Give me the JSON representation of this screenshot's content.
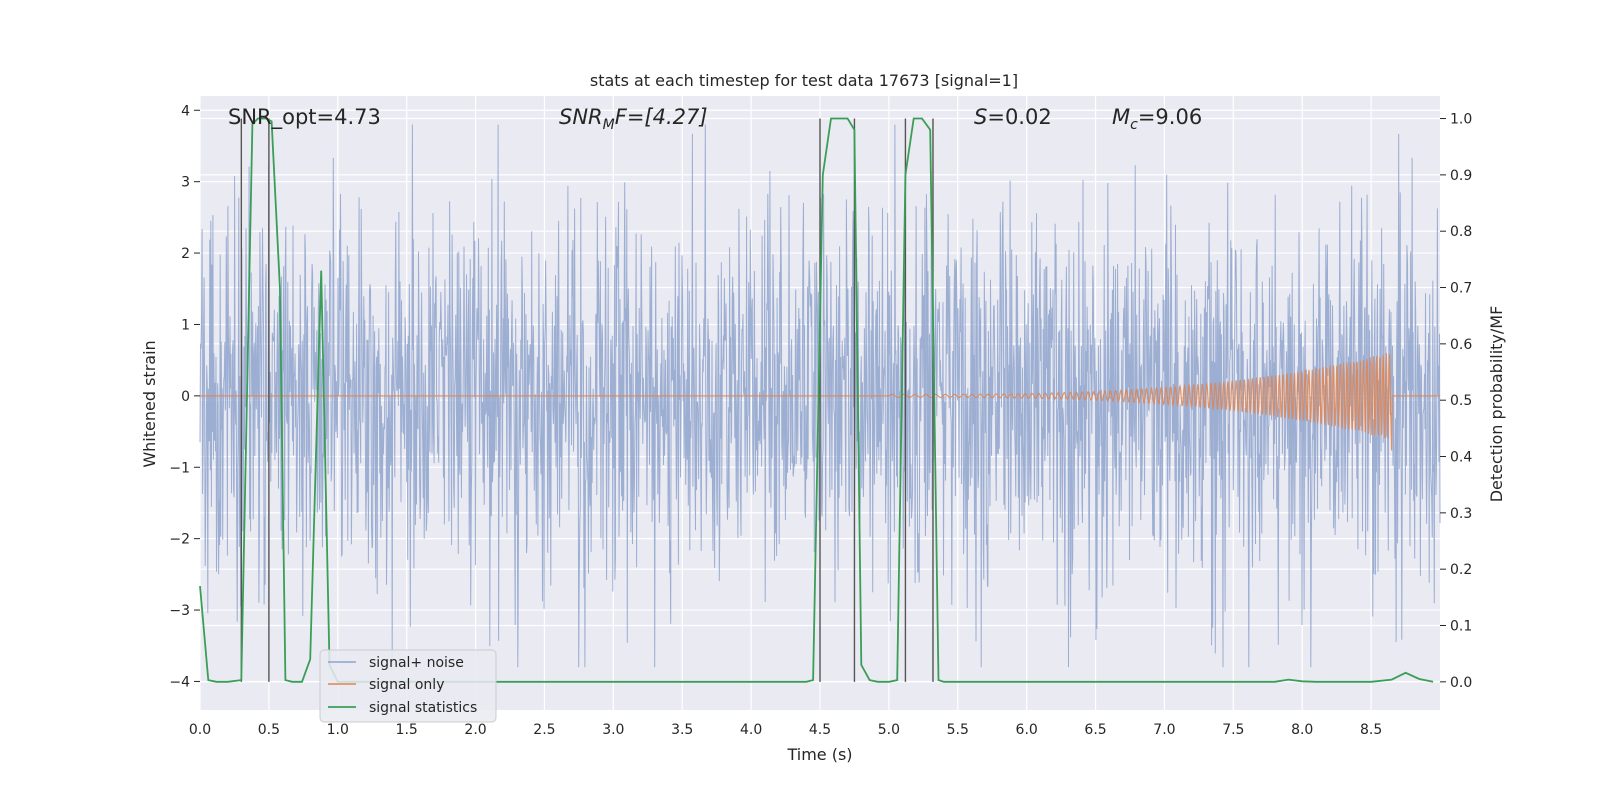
{
  "chart_data": {
    "type": "line",
    "title": "stats at each timestep for test data 17673 [signal=1]",
    "xlabel": "Time (s)",
    "ylabel": "Whitened strain",
    "y2label": "Detection probability/MF",
    "xlim": [
      0.0,
      9.0
    ],
    "ylim": [
      -4.4,
      4.2
    ],
    "y2lim": [
      -0.05,
      1.04
    ],
    "xticks": [
      0.0,
      0.5,
      1.0,
      1.5,
      2.0,
      2.5,
      3.0,
      3.5,
      4.0,
      4.5,
      5.0,
      5.5,
      6.0,
      6.5,
      7.0,
      7.5,
      8.0,
      8.5
    ],
    "xtick_labels": [
      "0.0",
      "0.5",
      "1.0",
      "1.5",
      "2.0",
      "2.5",
      "3.0",
      "3.5",
      "4.0",
      "4.5",
      "5.0",
      "5.5",
      "6.0",
      "6.5",
      "7.0",
      "7.5",
      "8.0",
      "8.5"
    ],
    "yticks": [
      4,
      3,
      2,
      1,
      0,
      -1,
      -2,
      -3,
      -4
    ],
    "ytick_labels": [
      "4",
      "3",
      "2",
      "1",
      "0",
      "−1",
      "−2",
      "−3",
      "−4"
    ],
    "y2ticks": [
      1.0,
      0.9,
      0.8,
      0.7,
      0.6,
      0.5,
      0.4,
      0.3,
      0.2,
      0.1,
      0.0
    ],
    "y2tick_labels": [
      "1.0",
      "0.9",
      "0.8",
      "0.7",
      "0.6",
      "0.5",
      "0.4",
      "0.3",
      "0.2",
      "0.1",
      "0.0"
    ],
    "grid": true,
    "legend_position": "bottom-left",
    "annotations": {
      "snr_opt": "SNR_opt=4.73",
      "snr_mf_base": "SNR",
      "snr_mf_sub": "M",
      "snr_mf_rest": "F=[4.27]",
      "s_italic": "S",
      "s_rest": "=0.02",
      "mc_base": "M",
      "mc_sub": "c",
      "mc_rest": "=9.06"
    },
    "series": [
      {
        "name": "signal+ noise",
        "axis": "left",
        "color": "#8ea3cc",
        "description_type": "noise",
        "envelope_typical": 2.0,
        "envelope_max": 3.8
      },
      {
        "name": "signal only",
        "axis": "left",
        "color": "#dd8452",
        "chirp": {
          "start": 5.0,
          "peak": 8.65,
          "peak_amplitude": 0.6,
          "min_amplitude": -0.85
        }
      },
      {
        "name": "signal statistics",
        "axis": "right",
        "color": "#3a9e56",
        "x": [
          0.0,
          0.06,
          0.12,
          0.2,
          0.3,
          0.38,
          0.42,
          0.48,
          0.52,
          0.58,
          0.62,
          0.67,
          0.74,
          0.8,
          0.88,
          0.94,
          1.0,
          1.5,
          2.0,
          2.5,
          3.0,
          3.5,
          4.0,
          4.4,
          4.45,
          4.52,
          4.58,
          4.62,
          4.7,
          4.75,
          4.8,
          4.86,
          4.92,
          5.0,
          5.06,
          5.12,
          5.18,
          5.24,
          5.3,
          5.36,
          5.4,
          5.46,
          5.5,
          6.0,
          6.5,
          7.0,
          7.5,
          7.8,
          7.9,
          8.0,
          8.1,
          8.5,
          8.65,
          8.75,
          8.85,
          8.95
        ],
        "y": [
          0.17,
          0.003,
          0.0,
          0.0,
          0.003,
          0.99,
          1.0,
          1.0,
          0.995,
          0.7,
          0.003,
          0.0,
          0.0,
          0.04,
          0.73,
          0.03,
          0.0,
          0.0,
          0.0,
          0.0,
          0.0,
          0.0,
          0.0,
          0.0,
          0.003,
          0.9,
          1.0,
          1.0,
          1.0,
          0.98,
          0.03,
          0.003,
          0.0,
          0.0,
          0.003,
          0.9,
          1.0,
          1.0,
          0.98,
          0.003,
          0.0,
          0.0,
          0.0,
          0.0,
          0.0,
          0.0,
          0.0,
          0.0,
          0.004,
          0.001,
          0.0,
          0.0,
          0.004,
          0.016,
          0.005,
          0.0
        ]
      }
    ],
    "vertical_markers": [
      0.3,
      0.5,
      4.5,
      4.75,
      5.12,
      5.32
    ]
  }
}
